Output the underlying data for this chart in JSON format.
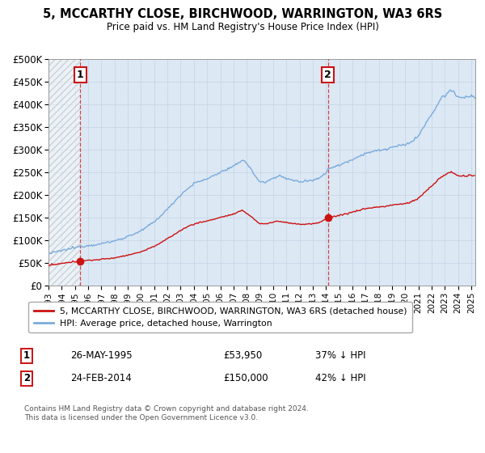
{
  "title_line1": "5, MCCARTHY CLOSE, BIRCHWOOD, WARRINGTON, WA3 6RS",
  "title_line2": "Price paid vs. HM Land Registry's House Price Index (HPI)",
  "ylim": [
    0,
    500000
  ],
  "yticks": [
    0,
    50000,
    100000,
    150000,
    200000,
    250000,
    300000,
    350000,
    400000,
    450000,
    500000
  ],
  "ytick_labels": [
    "£0",
    "£50K",
    "£100K",
    "£150K",
    "£200K",
    "£250K",
    "£300K",
    "£350K",
    "£400K",
    "£450K",
    "£500K"
  ],
  "xlim_start": 1993.0,
  "xlim_end": 2025.3,
  "xticks": [
    1993,
    1994,
    1995,
    1996,
    1997,
    1998,
    1999,
    2000,
    2001,
    2002,
    2003,
    2004,
    2005,
    2006,
    2007,
    2008,
    2009,
    2010,
    2011,
    2012,
    2013,
    2014,
    2015,
    2016,
    2017,
    2018,
    2019,
    2020,
    2021,
    2022,
    2023,
    2024,
    2025
  ],
  "hpi_color": "#7aabdc",
  "price_color": "#cc1111",
  "point1_x": 1995.4,
  "point1_y": 53950,
  "point2_x": 2014.15,
  "point2_y": 150000,
  "point1_label": "1",
  "point2_label": "2",
  "legend_entry1": "5, MCCARTHY CLOSE, BIRCHWOOD, WARRINGTON, WA3 6RS (detached house)",
  "legend_entry2": "HPI: Average price, detached house, Warrington",
  "annotation1_date": "26-MAY-1995",
  "annotation1_price": "£53,950",
  "annotation1_hpi": "37% ↓ HPI",
  "annotation2_date": "24-FEB-2014",
  "annotation2_price": "£150,000",
  "annotation2_hpi": "42% ↓ HPI",
  "footnote": "Contains HM Land Registry data © Crown copyright and database right 2024.\nThis data is licensed under the Open Government Licence v3.0.",
  "grid_color": "#c8d8e8",
  "plot_bg": "#dce8f4"
}
